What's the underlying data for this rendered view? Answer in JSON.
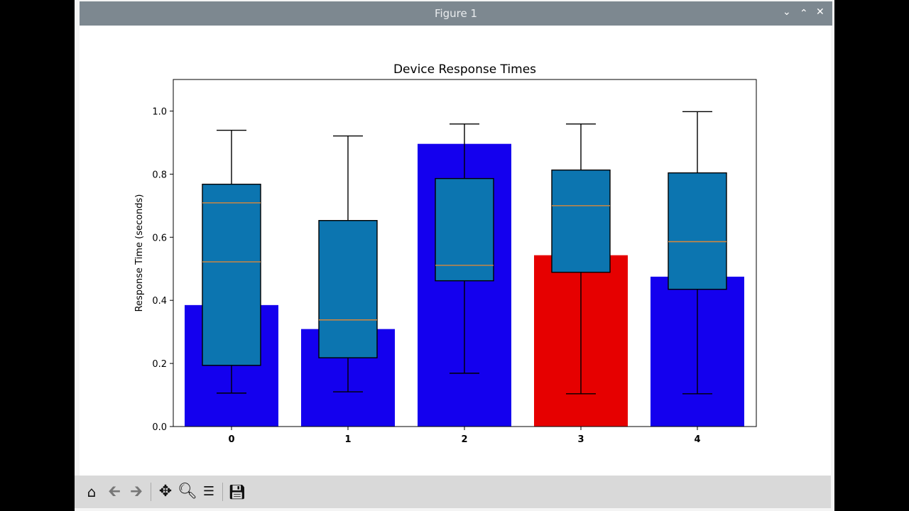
{
  "window": {
    "title": "Figure 1",
    "buttons": [
      "minimize-icon",
      "maximize-icon",
      "close-icon"
    ]
  },
  "toolbar": {
    "icons": [
      "home-icon",
      "back-arrow-icon",
      "forward-arrow-icon",
      "pan-icon",
      "zoom-icon",
      "configure-subplots-icon",
      "save-icon"
    ]
  },
  "colors": {
    "bar_default": "#1400ee",
    "bar_highlight": "#e60000",
    "box_fill": "#0c75b0",
    "median": "#d9883a"
  },
  "chart_data": {
    "type": "bar+boxplot",
    "title": "Device Response Times",
    "xlabel": "",
    "ylabel": "Response Time (seconds)",
    "categories": [
      "0",
      "1",
      "2",
      "3",
      "4"
    ],
    "ylim": [
      0,
      1.1
    ],
    "yticks": [
      "0.0",
      "0.2",
      "0.4",
      "0.6",
      "0.8",
      "1.0"
    ],
    "grid": false,
    "bars": {
      "values": [
        0.385,
        0.309,
        0.896,
        0.543,
        0.475
      ],
      "colors": [
        "#1400ee",
        "#1400ee",
        "#1400ee",
        "#e60000",
        "#1400ee"
      ]
    },
    "boxes": [
      {
        "whislo": 0.106,
        "q1": 0.194,
        "medians": [
          0.709,
          0.522
        ],
        "q3": 0.768,
        "whishi": 0.939
      },
      {
        "whislo": 0.11,
        "q1": 0.218,
        "medians": [
          0.338
        ],
        "q3": 0.653,
        "whishi": 0.921
      },
      {
        "whislo": 0.169,
        "q1": 0.462,
        "medians": [
          0.511
        ],
        "q3": 0.786,
        "whishi": 0.959
      },
      {
        "whislo": 0.104,
        "q1": 0.489,
        "medians": [
          0.7
        ],
        "q3": 0.813,
        "whishi": 0.959
      },
      {
        "whislo": 0.104,
        "q1": 0.435,
        "medians": [
          0.586
        ],
        "q3": 0.804,
        "whishi": 0.998
      }
    ]
  }
}
